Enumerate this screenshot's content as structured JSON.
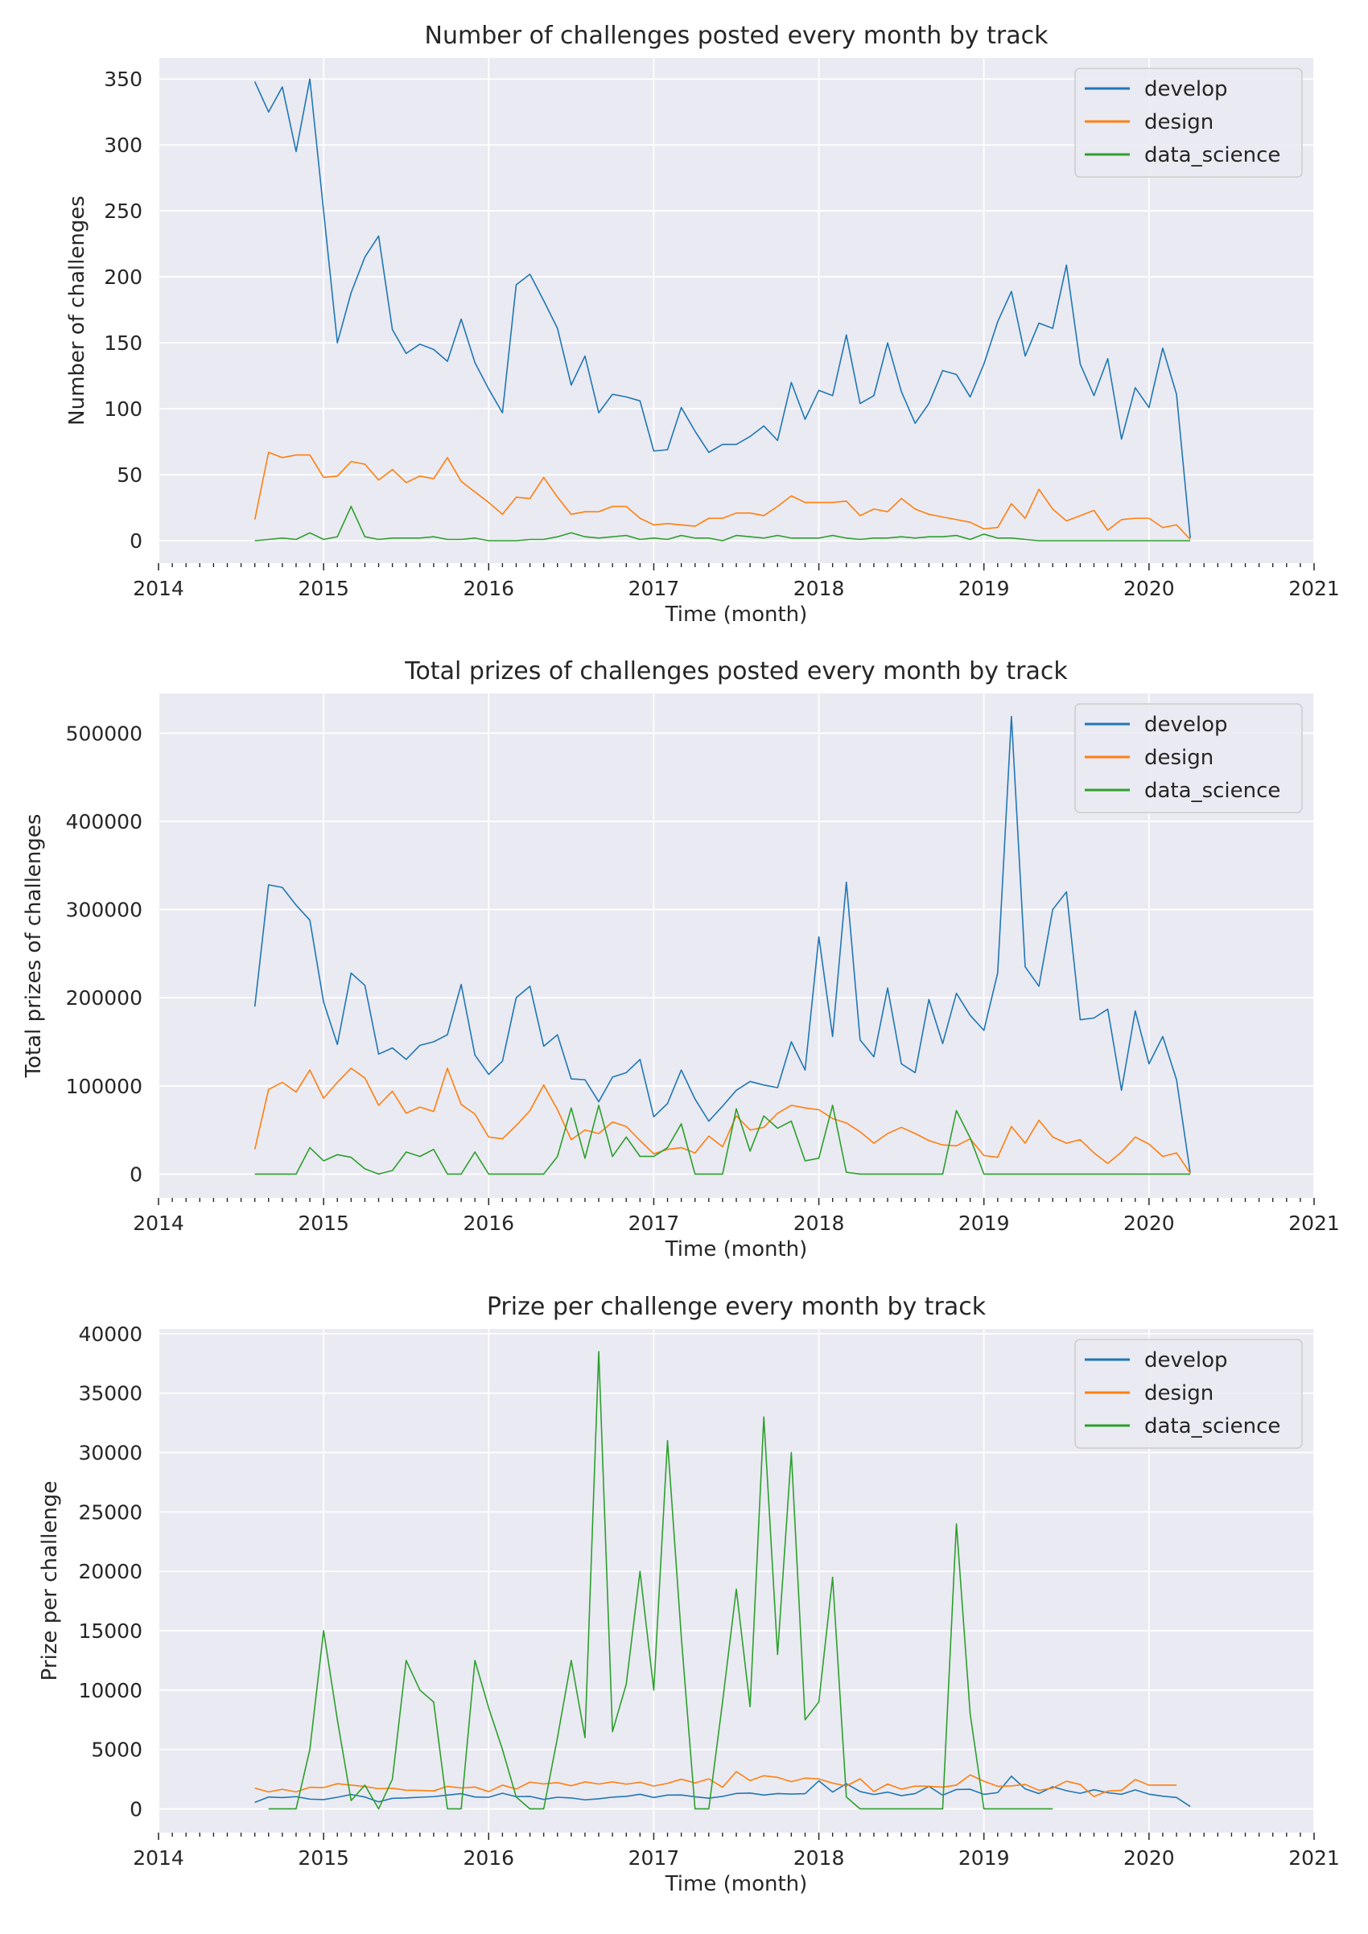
{
  "chart_data": [
    {
      "type": "line",
      "title": "Number of challenges posted every month by track",
      "xlabel": "Time (month)",
      "ylabel": "Number of challenges",
      "xlim": [
        "2014-01",
        "2021-01"
      ],
      "ylim": [
        -17,
        366
      ],
      "x_ticks": [
        "2014",
        "2015",
        "2016",
        "2017",
        "2018",
        "2019",
        "2020",
        "2021"
      ],
      "y_ticks": [
        0,
        50,
        100,
        150,
        200,
        250,
        300,
        350
      ],
      "y_tick_labels": [
        "0",
        "50",
        "100",
        "150",
        "200",
        "250",
        "300",
        "350"
      ],
      "grid": true,
      "legend": "top-right",
      "series": [
        {
          "name": "develop",
          "color": "#1f77b4",
          "start": "2014-08",
          "values": [
            348,
            325,
            344,
            295,
            350,
            250,
            150,
            188,
            215,
            231,
            160,
            142,
            149,
            145,
            136,
            168,
            135,
            115,
            97,
            194,
            202,
            182,
            161,
            118,
            140,
            97,
            111,
            109,
            106,
            68,
            69,
            101,
            83,
            67,
            73,
            73,
            79,
            87,
            76,
            120,
            92,
            114,
            110,
            156,
            104,
            110,
            150,
            113,
            89,
            104,
            129,
            126,
            109,
            134,
            166,
            189,
            140,
            165,
            161,
            209,
            134,
            110,
            138,
            77,
            116,
            101,
            146,
            111,
            2
          ]
        },
        {
          "name": "design",
          "color": "#ff7f0e",
          "start": "2014-08",
          "values": [
            16,
            67,
            63,
            65,
            65,
            48,
            49,
            60,
            58,
            46,
            54,
            44,
            49,
            47,
            63,
            45,
            37,
            29,
            20,
            33,
            32,
            48,
            33,
            20,
            22,
            22,
            26,
            26,
            17,
            12,
            13,
            12,
            11,
            17,
            17,
            21,
            21,
            19,
            26,
            34,
            29,
            29,
            29,
            30,
            19,
            24,
            22,
            32,
            24,
            20,
            18,
            16,
            14,
            9,
            10,
            28,
            17,
            39,
            24,
            15,
            19,
            23,
            8,
            16,
            17,
            17,
            10,
            12,
            1
          ]
        },
        {
          "name": "data_science",
          "color": "#2ca02c",
          "start": "2014-08",
          "values": [
            0,
            1,
            2,
            1,
            6,
            1,
            3,
            26,
            3,
            1,
            2,
            2,
            2,
            3,
            1,
            1,
            2,
            0,
            0,
            0,
            1,
            1,
            3,
            6,
            3,
            2,
            3,
            4,
            1,
            2,
            1,
            4,
            2,
            2,
            0,
            4,
            3,
            2,
            4,
            2,
            2,
            2,
            4,
            2,
            1,
            2,
            2,
            3,
            2,
            3,
            3,
            4,
            1,
            5,
            2,
            2,
            1,
            0,
            0,
            0,
            0,
            0,
            0,
            0,
            0,
            0,
            0,
            0,
            0
          ]
        }
      ]
    },
    {
      "type": "line",
      "title": "Total prizes of challenges posted every month by track",
      "xlabel": "Time (month)",
      "ylabel": "Total prizes of challenges",
      "xlim": [
        "2014-01",
        "2021-01"
      ],
      "ylim": [
        -27000,
        545000
      ],
      "x_ticks": [
        "2014",
        "2015",
        "2016",
        "2017",
        "2018",
        "2019",
        "2020",
        "2021"
      ],
      "y_ticks": [
        0,
        100000,
        200000,
        300000,
        400000,
        500000
      ],
      "y_tick_labels": [
        "0",
        "100000",
        "200000",
        "300000",
        "400000",
        "500000"
      ],
      "grid": true,
      "legend": "top-right",
      "series": [
        {
          "name": "develop",
          "color": "#1f77b4",
          "start": "2014-08",
          "values": [
            190000,
            328000,
            325000,
            305000,
            288000,
            195000,
            147000,
            228000,
            214000,
            136000,
            143000,
            130000,
            146000,
            150000,
            158000,
            215000,
            135000,
            113000,
            128000,
            200000,
            213000,
            145000,
            158000,
            108000,
            107000,
            82000,
            110000,
            115000,
            130000,
            65000,
            80000,
            118000,
            85000,
            60000,
            77000,
            95000,
            105000,
            101000,
            98000,
            150000,
            118000,
            269000,
            156000,
            331000,
            152000,
            133000,
            211000,
            125000,
            115000,
            198000,
            148000,
            205000,
            180000,
            163000,
            228000,
            519000,
            235000,
            213000,
            300000,
            320000,
            175000,
            177000,
            187000,
            95000,
            185000,
            125000,
            156000,
            107000,
            1000
          ]
        },
        {
          "name": "design",
          "color": "#ff7f0e",
          "start": "2014-08",
          "values": [
            28000,
            96000,
            104000,
            93000,
            118000,
            86000,
            104000,
            120000,
            109000,
            78000,
            94000,
            69000,
            76000,
            71000,
            120000,
            79000,
            68000,
            42000,
            40000,
            55000,
            72000,
            101000,
            73000,
            39000,
            50000,
            46000,
            59000,
            54000,
            38000,
            23000,
            28000,
            30000,
            24000,
            43000,
            31000,
            66000,
            50000,
            53000,
            69000,
            78000,
            75000,
            73000,
            63000,
            58000,
            48000,
            35000,
            46000,
            53000,
            46000,
            38000,
            33000,
            32000,
            40000,
            21000,
            19000,
            54000,
            35000,
            61000,
            42000,
            35000,
            39000,
            24000,
            12000,
            25000,
            42000,
            34000,
            20000,
            24000,
            1000
          ]
        },
        {
          "name": "data_science",
          "color": "#2ca02c",
          "start": "2014-08",
          "values": [
            0,
            0,
            0,
            0,
            30000,
            15000,
            22000,
            19000,
            6000,
            0,
            4000,
            25000,
            20000,
            28000,
            0,
            0,
            25000,
            0,
            0,
            0,
            0,
            0,
            20000,
            75000,
            18000,
            78000,
            20000,
            42000,
            20000,
            20000,
            30000,
            57000,
            0,
            0,
            0,
            74000,
            26000,
            66000,
            52000,
            60000,
            15000,
            18000,
            78000,
            2000,
            0,
            0,
            0,
            0,
            0,
            0,
            0,
            72000,
            41000,
            0,
            0,
            0,
            0,
            0,
            0,
            0,
            0,
            0,
            0,
            0,
            0,
            0,
            0,
            0,
            0
          ]
        }
      ]
    },
    {
      "type": "line",
      "title": "Prize per challenge every month by track",
      "xlabel": "Time (month)",
      "ylabel": "Prize per challenge",
      "xlim": [
        "2014-01",
        "2021-01"
      ],
      "ylim": [
        -2000,
        40400
      ],
      "x_ticks": [
        "2014",
        "2015",
        "2016",
        "2017",
        "2018",
        "2019",
        "2020",
        "2021"
      ],
      "y_ticks": [
        0,
        5000,
        10000,
        15000,
        20000,
        25000,
        30000,
        35000,
        40000
      ],
      "y_tick_labels": [
        "0",
        "5000",
        "10000",
        "15000",
        "20000",
        "25000",
        "30000",
        "35000",
        "40000"
      ],
      "grid": true,
      "legend": "top-right",
      "series": [
        {
          "name": "develop",
          "color": "#1f77b4",
          "start": "2014-08",
          "values": [
            550,
            1000,
            950,
            1030,
            820,
            780,
            980,
            1210,
            1000,
            590,
            890,
            920,
            980,
            1030,
            1160,
            1280,
            1000,
            980,
            1320,
            1030,
            1050,
            800,
            980,
            920,
            760,
            850,
            990,
            1050,
            1230,
            960,
            1160,
            1170,
            1020,
            900,
            1050,
            1300,
            1330,
            1160,
            1290,
            1250,
            1280,
            2360,
            1420,
            2120,
            1460,
            1210,
            1410,
            1110,
            1290,
            1900,
            1150,
            1630,
            1650,
            1220,
            1370,
            2750,
            1680,
            1290,
            1860,
            1530,
            1310,
            1610,
            1360,
            1230,
            1600,
            1240,
            1070,
            960,
            200
          ]
        },
        {
          "name": "design",
          "color": "#ff7f0e",
          "start": "2014-08",
          "values": [
            1750,
            1430,
            1650,
            1430,
            1820,
            1790,
            2120,
            2000,
            1880,
            1700,
            1740,
            1570,
            1550,
            1510,
            1900,
            1760,
            1840,
            1450,
            2000,
            1670,
            2250,
            2100,
            2210,
            1950,
            2270,
            2090,
            2270,
            2080,
            2240,
            1920,
            2150,
            2500,
            2180,
            2530,
            1820,
            3140,
            2380,
            2790,
            2650,
            2290,
            2590,
            2520,
            2170,
            1930,
            2530,
            1460,
            2090,
            1660,
            1920,
            1900,
            1830,
            2000,
            2860,
            2330,
            1900,
            1930,
            2060,
            1560,
            1750,
            2330,
            2050,
            1040,
            1500,
            1560,
            2470,
            2000,
            2000,
            2000
          ]
        },
        {
          "name": "data_science",
          "color": "#2ca02c",
          "start": "2014-09",
          "values": [
            0,
            0,
            0,
            5000,
            15000,
            7500,
            700,
            2000,
            0,
            2500,
            12500,
            10000,
            9000,
            0,
            0,
            12500,
            8500,
            5000,
            1000,
            0,
            0,
            6000,
            12500,
            6000,
            38500,
            6500,
            10500,
            20000,
            10000,
            31000,
            14500,
            0,
            0,
            9000,
            18500,
            8600,
            33000,
            13000,
            30000,
            7500,
            9000,
            19500,
            1000,
            0,
            0,
            0,
            0,
            0,
            0,
            0,
            24000,
            8000,
            0,
            0,
            0,
            0,
            0,
            0
          ]
        }
      ]
    }
  ]
}
